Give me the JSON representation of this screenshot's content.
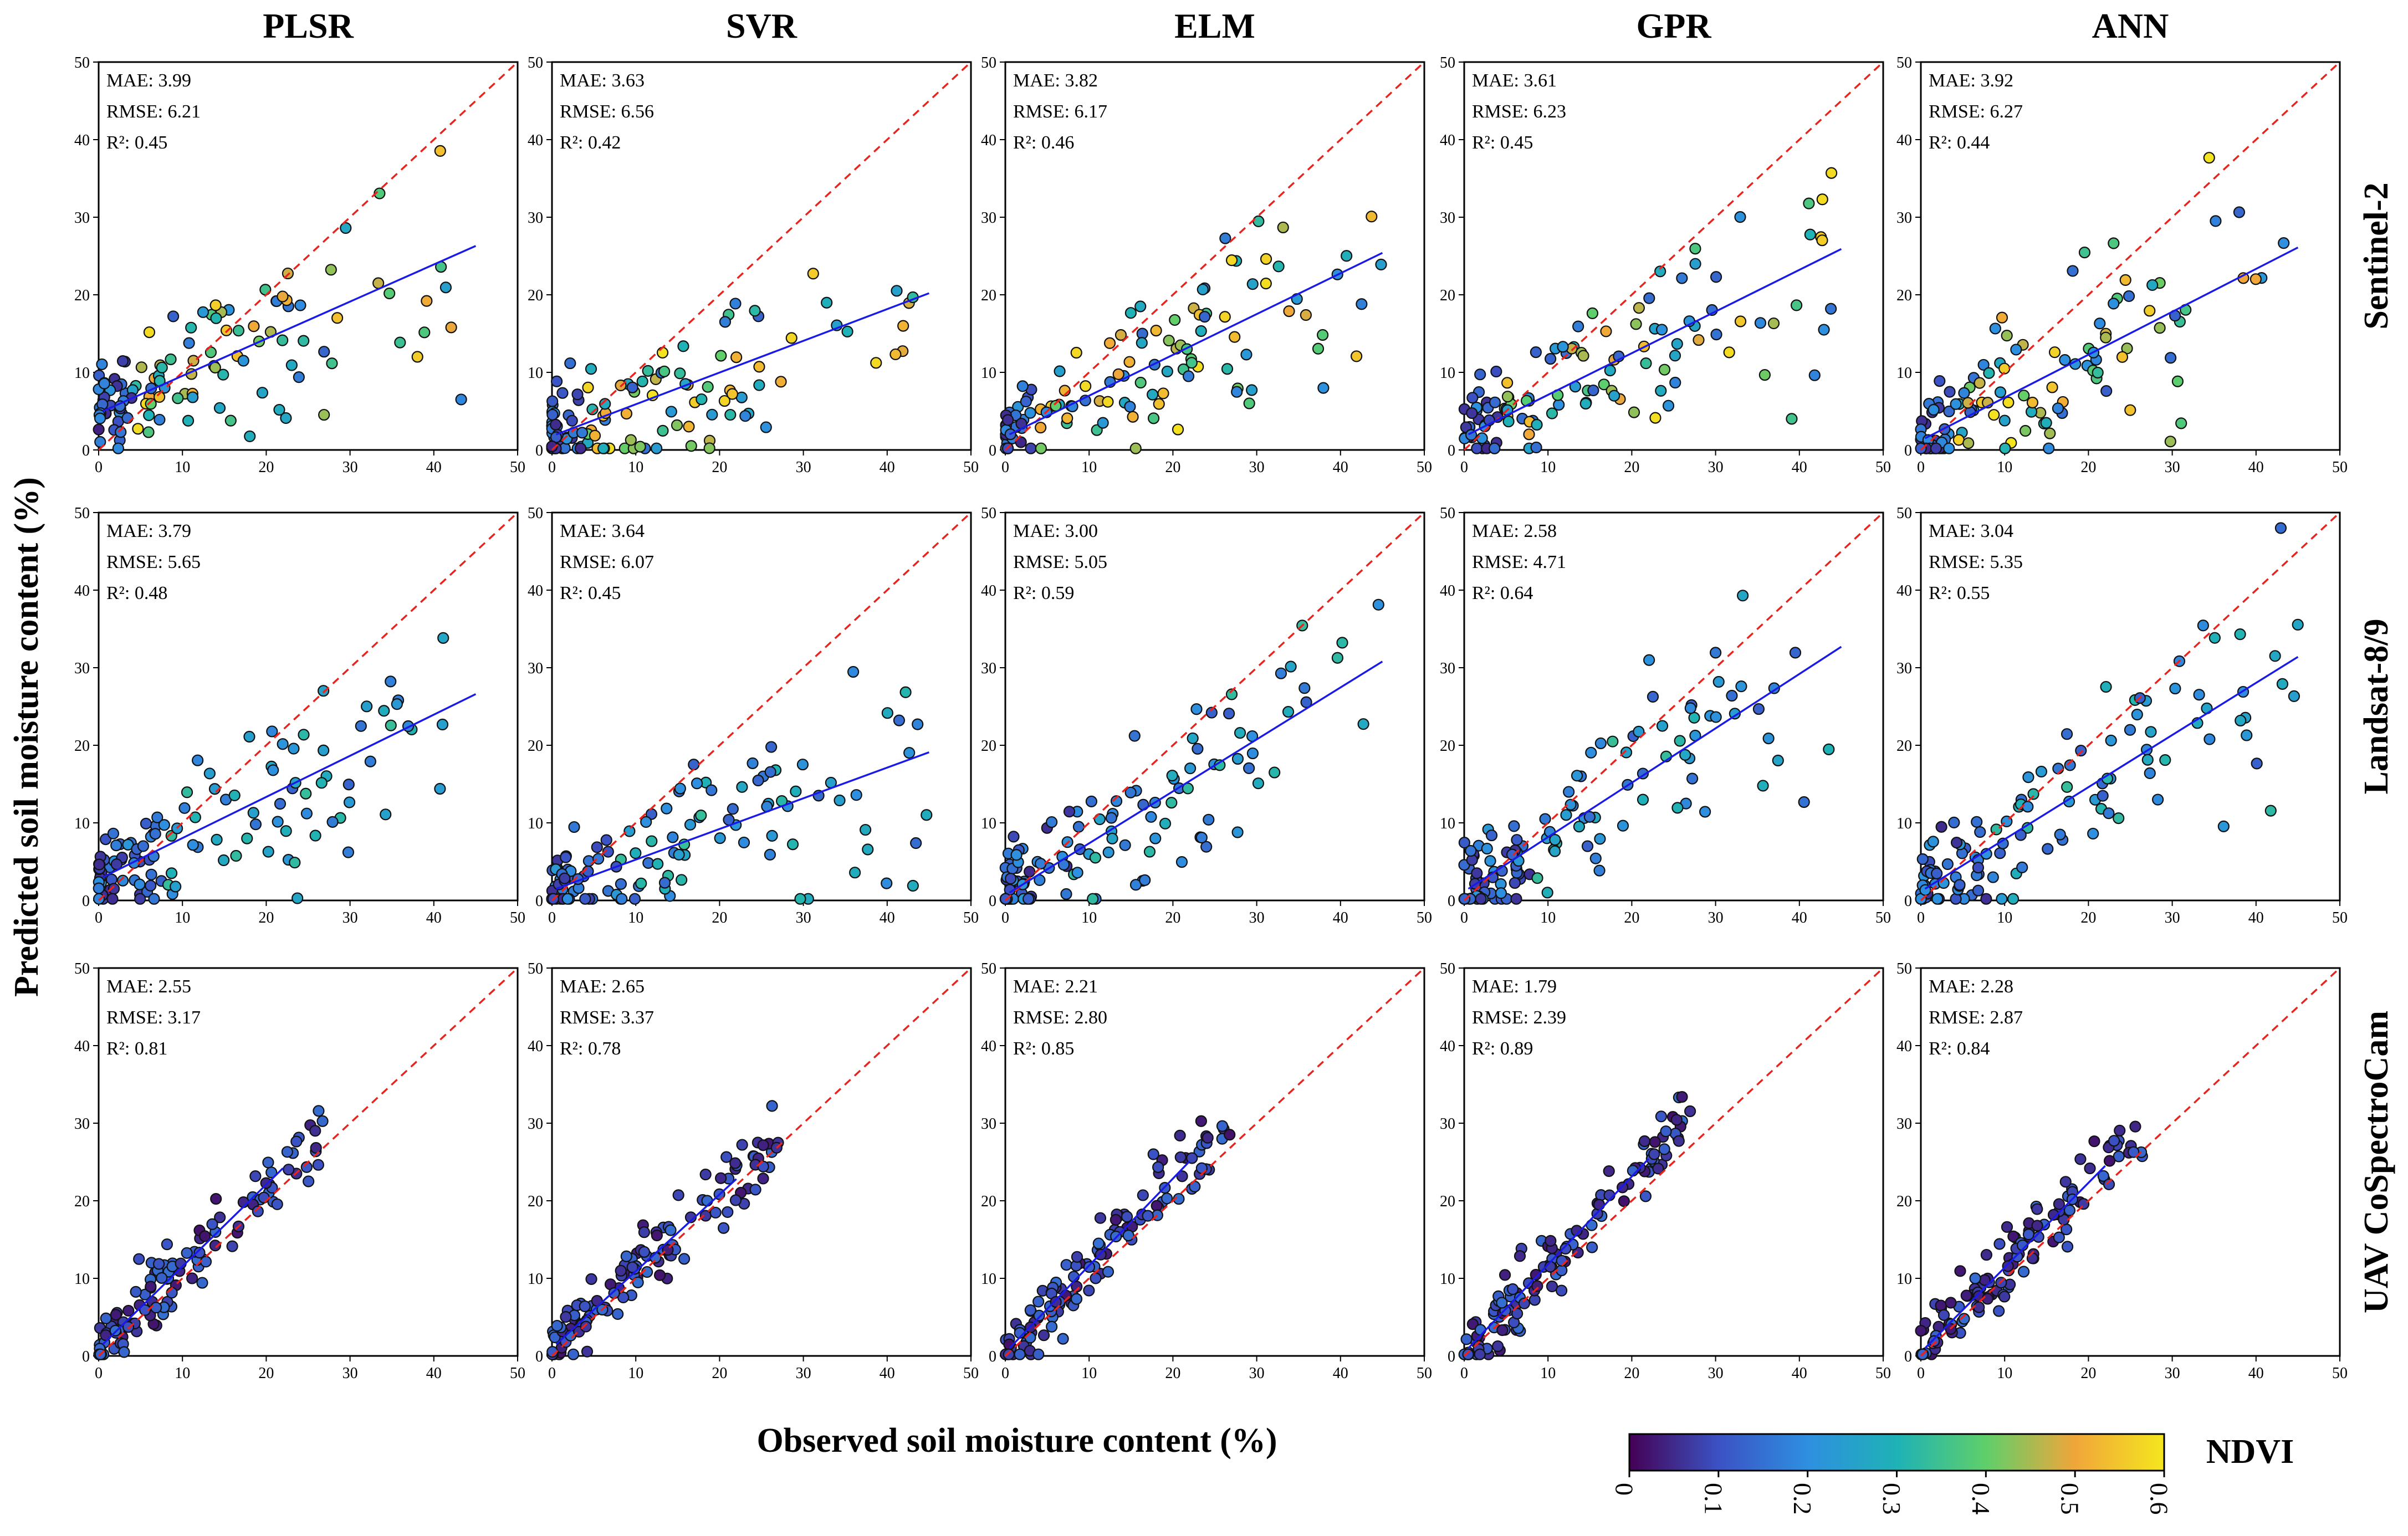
{
  "figure": {
    "y_label": "Predicted soil moisture content (%)",
    "x_label": "Observed soil moisture content (%)",
    "colorbar": {
      "label": "NDVI",
      "ticks": [
        "0",
        "0.1",
        "0.2",
        "0.3",
        "0.4",
        "0.5",
        "0.6"
      ],
      "range": [
        0,
        0.6
      ],
      "stops": [
        "#440154",
        "#3b52c4",
        "#2e8fe0",
        "#1fb2b6",
        "#5fcf6a",
        "#f0a63a",
        "#f4e61e"
      ]
    }
  },
  "columns": [
    "PLSR",
    "SVR",
    "ELM",
    "GPR",
    "ANN"
  ],
  "rows": [
    "Sentinel-2",
    "Landsat-8/9",
    "UAV CoSpectroCam"
  ],
  "chart_data": {
    "type": "scatter",
    "description": "Predicted vs observed soil moisture content (%) for 5 models x 3 sensors; points coloured by NDVI; red dashed 1:1 line; blue regression line",
    "xlim": [
      0,
      50
    ],
    "ylim": [
      0,
      50
    ],
    "ticks": [
      0,
      10,
      20,
      30,
      40,
      50
    ],
    "panels": [
      {
        "row": "Sentinel-2",
        "model": "PLSR",
        "mae": "MAE: 3.99",
        "rmse": "RMSE: 6.21",
        "r2": "R²: 0.45",
        "fit": [
          [
            0.5,
            5.0
          ],
          [
            45,
            26.3
          ]
        ]
      },
      {
        "row": "Sentinel-2",
        "model": "SVR",
        "mae": "MAE: 3.63",
        "rmse": "RMSE: 6.56",
        "r2": "R²: 0.42",
        "fit": [
          [
            0.5,
            2.0
          ],
          [
            45,
            20.2
          ]
        ]
      },
      {
        "row": "Sentinel-2",
        "model": "ELM",
        "mae": "MAE: 3.82",
        "rmse": "RMSE: 6.17",
        "r2": "R²: 0.46",
        "fit": [
          [
            0.5,
            2.0
          ],
          [
            45,
            25.4
          ]
        ]
      },
      {
        "row": "Sentinel-2",
        "model": "GPR",
        "mae": "MAE: 3.61",
        "rmse": "RMSE: 6.23",
        "r2": "R²: 0.45",
        "fit": [
          [
            0.5,
            2.0
          ],
          [
            45,
            25.9
          ]
        ]
      },
      {
        "row": "Sentinel-2",
        "model": "ANN",
        "mae": "MAE: 3.92",
        "rmse": "RMSE: 6.27",
        "r2": "R²: 0.44",
        "fit": [
          [
            0.5,
            1.5
          ],
          [
            45,
            26.1
          ]
        ]
      },
      {
        "row": "Landsat-8/9",
        "model": "PLSR",
        "mae": "MAE: 3.79",
        "rmse": "RMSE: 5.65",
        "r2": "R²: 0.48",
        "fit": [
          [
            0.5,
            3.0
          ],
          [
            45,
            26.6
          ]
        ]
      },
      {
        "row": "Landsat-8/9",
        "model": "SVR",
        "mae": "MAE: 3.64",
        "rmse": "RMSE: 6.07",
        "r2": "R²: 0.45",
        "fit": [
          [
            0.5,
            1.5
          ],
          [
            45,
            19.1
          ]
        ]
      },
      {
        "row": "Landsat-8/9",
        "model": "ELM",
        "mae": "MAE: 3.00",
        "rmse": "RMSE: 5.05",
        "r2": "R²: 0.59",
        "fit": [
          [
            0.5,
            1.0
          ],
          [
            45,
            30.8
          ]
        ]
      },
      {
        "row": "Landsat-8/9",
        "model": "GPR",
        "mae": "MAE: 2.58",
        "rmse": "RMSE: 4.71",
        "r2": "R²: 0.64",
        "fit": [
          [
            0.5,
            1.5
          ],
          [
            45,
            32.7
          ]
        ]
      },
      {
        "row": "Landsat-8/9",
        "model": "ANN",
        "mae": "MAE: 3.04",
        "rmse": "RMSE: 5.35",
        "r2": "R²: 0.55",
        "fit": [
          [
            0.5,
            1.5
          ],
          [
            45,
            31.4
          ]
        ]
      },
      {
        "row": "UAV CoSpectroCam",
        "model": "PLSR",
        "mae": "MAE: 2.55",
        "rmse": "RMSE: 3.17",
        "r2": "R²: 0.81",
        "fit": [
          [
            0.5,
            1.5
          ],
          [
            22,
            24.2
          ]
        ]
      },
      {
        "row": "UAV CoSpectroCam",
        "model": "SVR",
        "mae": "MAE: 2.65",
        "rmse": "RMSE: 3.37",
        "r2": "R²: 0.78",
        "fit": [
          [
            0.5,
            1.5
          ],
          [
            22,
            22.8
          ]
        ]
      },
      {
        "row": "UAV CoSpectroCam",
        "model": "ELM",
        "mae": "MAE: 2.21",
        "rmse": "RMSE: 2.80",
        "r2": "R²: 0.85",
        "fit": [
          [
            0.5,
            1.0
          ],
          [
            22,
            25.1
          ]
        ]
      },
      {
        "row": "UAV CoSpectroCam",
        "model": "GPR",
        "mae": "MAE: 1.79",
        "rmse": "RMSE: 2.39",
        "r2": "R²: 0.89",
        "fit": [
          [
            0.5,
            1.0
          ],
          [
            22,
            25.4
          ]
        ]
      },
      {
        "row": "UAV CoSpectroCam",
        "model": "ANN",
        "mae": "MAE: 2.28",
        "rmse": "RMSE: 2.87",
        "r2": "R²: 0.84",
        "fit": [
          [
            0.5,
            1.0
          ],
          [
            22,
            24.5
          ]
        ]
      }
    ]
  }
}
